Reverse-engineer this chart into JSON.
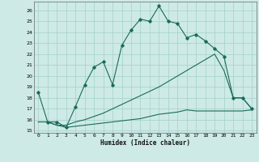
{
  "xlabel": "Humidex (Indice chaleur)",
  "bg_color": "#ceeae6",
  "grid_color": "#aad4ce",
  "line_color": "#1a6b5a",
  "xlim": [
    -0.5,
    23.5
  ],
  "ylim": [
    14.8,
    26.8
  ],
  "yticks": [
    15,
    16,
    17,
    18,
    19,
    20,
    21,
    22,
    23,
    24,
    25,
    26
  ],
  "xticks": [
    0,
    1,
    2,
    3,
    4,
    5,
    6,
    7,
    8,
    9,
    10,
    11,
    12,
    13,
    14,
    15,
    16,
    17,
    18,
    19,
    20,
    21,
    22,
    23
  ],
  "line1_x": [
    0,
    1,
    2,
    3,
    4,
    5,
    6,
    7,
    8,
    9,
    10,
    11,
    12,
    13,
    14,
    15,
    16,
    17,
    18,
    19,
    20,
    21,
    22,
    23
  ],
  "line1_y": [
    18.5,
    15.8,
    15.8,
    15.3,
    17.2,
    19.2,
    20.8,
    21.3,
    19.2,
    22.8,
    24.2,
    25.2,
    25.0,
    26.4,
    25.0,
    24.8,
    23.5,
    23.8,
    23.2,
    22.5,
    21.8,
    18.0,
    18.0,
    17.0
  ],
  "line2_x": [
    0,
    1,
    2,
    3,
    4,
    5,
    6,
    7,
    8,
    9,
    10,
    11,
    12,
    13,
    14,
    15,
    16,
    17,
    18,
    19,
    20,
    21,
    22,
    23
  ],
  "line2_y": [
    15.8,
    15.8,
    15.5,
    15.5,
    15.8,
    16.0,
    16.3,
    16.6,
    17.0,
    17.4,
    17.8,
    18.2,
    18.6,
    19.0,
    19.5,
    20.0,
    20.5,
    21.0,
    21.5,
    22.0,
    20.5,
    18.0,
    18.0,
    17.0
  ],
  "line3_x": [
    0,
    1,
    2,
    3,
    4,
    5,
    6,
    7,
    8,
    9,
    10,
    11,
    12,
    13,
    14,
    15,
    16,
    17,
    18,
    19,
    20,
    21,
    22,
    23
  ],
  "line3_y": [
    15.8,
    15.8,
    15.5,
    15.3,
    15.4,
    15.5,
    15.6,
    15.7,
    15.8,
    15.9,
    16.0,
    16.1,
    16.3,
    16.5,
    16.6,
    16.7,
    16.9,
    16.8,
    16.8,
    16.8,
    16.8,
    16.8,
    16.8,
    16.9
  ]
}
